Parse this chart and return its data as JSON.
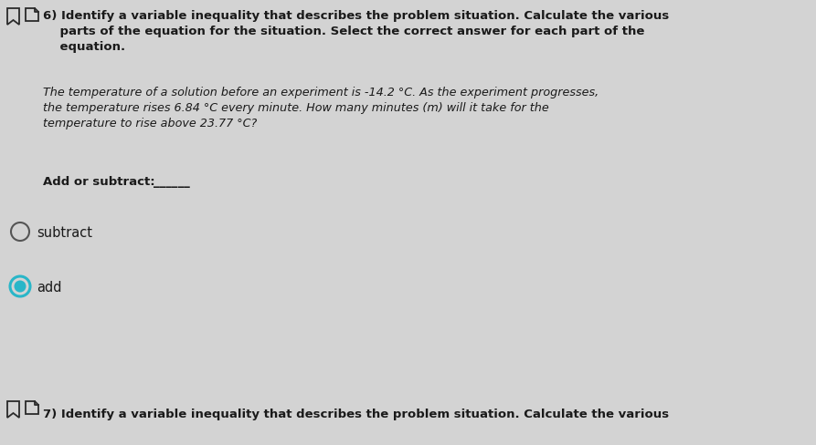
{
  "background_color": "#d3d3d3",
  "title_bold": "6) Identify a variable inequality that describes the problem situation. Calculate the various\n    parts of the equation for the situation. Select the correct answer for each part of the\n    equation.",
  "italic_text": "The temperature of a solution before an experiment is -14.2 °C. As the experiment progresses,\nthe temperature rises 6.84 °C every minute. How many minutes (m) will it take for the\ntemperature to rise above 23.77 °C?",
  "bold_label": "Add or subtract:",
  "underline_blank": "______",
  "option1": "subtract",
  "option2": "add",
  "footer_bold": "7) Identify a variable inequality that describes the problem situation. Calculate the various",
  "bookmark_color": "#2a2a2a",
  "radio_unselected_color": "#555555",
  "radio_selected_outer": "#29b6c8",
  "radio_selected_inner": "#29b6c8",
  "text_color": "#1a1a1a",
  "font_size_body": 9.5,
  "font_size_italic": 9.2,
  "font_size_options": 10.5,
  "font_size_footer": 9.5
}
